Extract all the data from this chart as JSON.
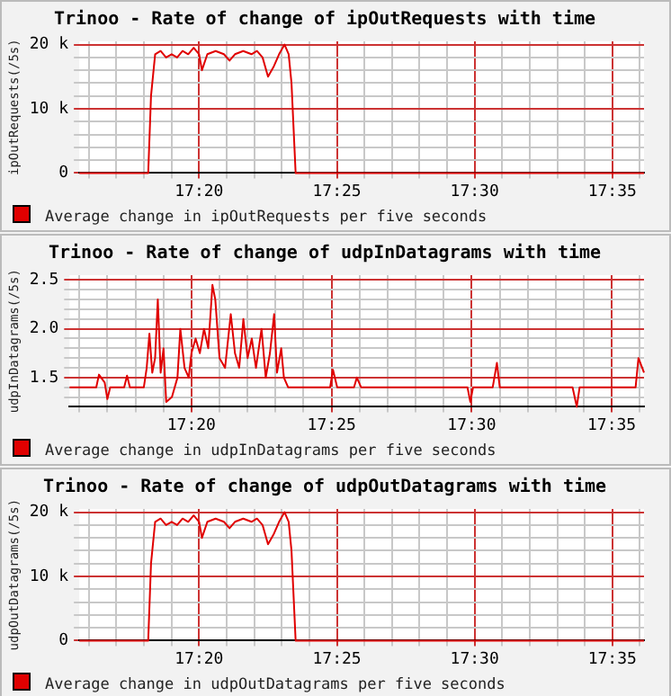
{
  "chart_data": [
    {
      "type": "line",
      "title": "Trinoo - Rate of change of ipOutRequests with time",
      "ylabel": "ipOutRequests(/5s)",
      "legend": "bottom",
      "grid": true,
      "marker": "none",
      "line_style": "solid",
      "xlim": [
        17.2608,
        17.6025
      ],
      "ylim": [
        0,
        20500
      ],
      "xticks": [
        {
          "value": 17.2667,
          "label": null
        },
        {
          "value": 17.2833,
          "label": null
        },
        {
          "value": 17.3,
          "label": null
        },
        {
          "value": 17.3167,
          "label": null
        },
        {
          "value": 17.3333,
          "label": "17:20"
        },
        {
          "value": 17.35,
          "label": null
        },
        {
          "value": 17.3667,
          "label": null
        },
        {
          "value": 17.3833,
          "label": null
        },
        {
          "value": 17.4,
          "label": null
        },
        {
          "value": 17.4167,
          "label": "17:25"
        },
        {
          "value": 17.4333,
          "label": null
        },
        {
          "value": 17.45,
          "label": null
        },
        {
          "value": 17.4667,
          "label": null
        },
        {
          "value": 17.4833,
          "label": null
        },
        {
          "value": 17.5,
          "label": "17:30"
        },
        {
          "value": 17.5167,
          "label": null
        },
        {
          "value": 17.5333,
          "label": null
        },
        {
          "value": 17.55,
          "label": null
        },
        {
          "value": 17.5667,
          "label": null
        },
        {
          "value": 17.5833,
          "label": "17:35"
        },
        {
          "value": 17.6,
          "label": null
        }
      ],
      "yticks": [
        {
          "value": 0,
          "label": "0"
        },
        {
          "value": 2000,
          "label": null
        },
        {
          "value": 4000,
          "label": null
        },
        {
          "value": 6000,
          "label": null
        },
        {
          "value": 8000,
          "label": null
        },
        {
          "value": 10000,
          "label": "10 k"
        },
        {
          "value": 12000,
          "label": null
        },
        {
          "value": 14000,
          "label": null
        },
        {
          "value": 16000,
          "label": null
        },
        {
          "value": 18000,
          "label": null
        },
        {
          "value": 20000,
          "label": "20 k"
        }
      ],
      "series": [
        {
          "name": "Average change in ipOutRequests per five seconds",
          "color": "#e00000",
          "x": [
            17.2608,
            17.3025,
            17.3042,
            17.3067,
            17.31,
            17.3133,
            17.3167,
            17.32,
            17.3233,
            17.3267,
            17.33,
            17.3333,
            17.335,
            17.3383,
            17.3433,
            17.3483,
            17.3517,
            17.355,
            17.36,
            17.365,
            17.3683,
            17.3717,
            17.375,
            17.3783,
            17.3817,
            17.385,
            17.3875,
            17.3892,
            17.3917,
            17.6025
          ],
          "values": [
            0,
            0,
            12000,
            18500,
            19000,
            18000,
            18500,
            18000,
            19000,
            18500,
            19500,
            18500,
            16000,
            18500,
            19000,
            18500,
            17500,
            18500,
            19000,
            18500,
            19000,
            18000,
            15000,
            16500,
            18500,
            20000,
            18500,
            14000,
            0,
            0
          ]
        }
      ]
    },
    {
      "type": "line",
      "title": "Trinoo - Rate of change of udpInDatagrams with time",
      "ylabel": "udpInDatagrams(/5s)",
      "legend": "bottom",
      "grid": true,
      "marker": "none",
      "line_style": "solid",
      "xlim": [
        17.2608,
        17.6025
      ],
      "ylim": [
        1.2,
        2.55
      ],
      "xticks": [
        {
          "value": 17.2667,
          "label": null
        },
        {
          "value": 17.2833,
          "label": null
        },
        {
          "value": 17.3,
          "label": null
        },
        {
          "value": 17.3167,
          "label": null
        },
        {
          "value": 17.3333,
          "label": "17:20"
        },
        {
          "value": 17.35,
          "label": null
        },
        {
          "value": 17.3667,
          "label": null
        },
        {
          "value": 17.3833,
          "label": null
        },
        {
          "value": 17.4,
          "label": null
        },
        {
          "value": 17.4167,
          "label": "17:25"
        },
        {
          "value": 17.4333,
          "label": null
        },
        {
          "value": 17.45,
          "label": null
        },
        {
          "value": 17.4667,
          "label": null
        },
        {
          "value": 17.4833,
          "label": null
        },
        {
          "value": 17.5,
          "label": "17:30"
        },
        {
          "value": 17.5167,
          "label": null
        },
        {
          "value": 17.5333,
          "label": null
        },
        {
          "value": 17.55,
          "label": null
        },
        {
          "value": 17.5667,
          "label": null
        },
        {
          "value": 17.5833,
          "label": "17:35"
        },
        {
          "value": 17.6,
          "label": null
        }
      ],
      "yticks": [
        {
          "value": 1.3,
          "label": null
        },
        {
          "value": 1.4,
          "label": null
        },
        {
          "value": 1.5,
          "label": "1.5"
        },
        {
          "value": 1.6,
          "label": null
        },
        {
          "value": 1.7,
          "label": null
        },
        {
          "value": 1.8,
          "label": null
        },
        {
          "value": 1.9,
          "label": null
        },
        {
          "value": 2,
          "label": "2.0"
        },
        {
          "value": 2.1,
          "label": null
        },
        {
          "value": 2.2,
          "label": null
        },
        {
          "value": 2.3,
          "label": null
        },
        {
          "value": 2.4,
          "label": null
        },
        {
          "value": 2.5,
          "label": "2.5"
        }
      ],
      "series": [
        {
          "name": "Average change in udpInDatagrams per five seconds",
          "color": "#e00000",
          "x": [
            17.2608,
            17.2767,
            17.2783,
            17.2817,
            17.2833,
            17.285,
            17.2933,
            17.295,
            17.2967,
            17.305,
            17.3067,
            17.3083,
            17.31,
            17.3117,
            17.3133,
            17.315,
            17.3167,
            17.3183,
            17.3217,
            17.325,
            17.3267,
            17.3292,
            17.3317,
            17.3333,
            17.3358,
            17.3383,
            17.3408,
            17.3433,
            17.3458,
            17.3475,
            17.35,
            17.3533,
            17.3567,
            17.3592,
            17.3617,
            17.3642,
            17.3667,
            17.3692,
            17.3717,
            17.375,
            17.3775,
            17.38,
            17.3825,
            17.3842,
            17.3867,
            17.3883,
            17.3908,
            17.4158,
            17.4175,
            17.42,
            17.43,
            17.4317,
            17.4342,
            17.4975,
            17.4992,
            17.5008,
            17.5125,
            17.515,
            17.5167,
            17.56,
            17.5625,
            17.5642,
            17.5975,
            17.5992,
            17.6025
          ],
          "values": [
            1.4,
            1.4,
            1.53,
            1.45,
            1.28,
            1.4,
            1.4,
            1.52,
            1.4,
            1.4,
            1.6,
            1.95,
            1.55,
            1.7,
            2.3,
            1.55,
            1.8,
            1.25,
            1.3,
            1.5,
            2.0,
            1.6,
            1.5,
            1.75,
            1.9,
            1.75,
            2.0,
            1.8,
            2.45,
            2.3,
            1.7,
            1.6,
            2.15,
            1.75,
            1.6,
            2.1,
            1.7,
            1.9,
            1.6,
            2.0,
            1.5,
            1.75,
            2.15,
            1.55,
            1.8,
            1.5,
            1.4,
            1.4,
            1.58,
            1.4,
            1.4,
            1.5,
            1.4,
            1.4,
            1.25,
            1.4,
            1.4,
            1.65,
            1.4,
            1.4,
            1.2,
            1.4,
            1.4,
            1.7,
            1.55
          ]
        }
      ]
    },
    {
      "type": "line",
      "title": "Trinoo - Rate of change of udpOutDatagrams with time",
      "ylabel": "udpOutDatagrams(/5s)",
      "legend": "bottom",
      "grid": true,
      "marker": "none",
      "line_style": "solid",
      "xlim": [
        17.2608,
        17.6025
      ],
      "ylim": [
        0,
        20500
      ],
      "xticks": [
        {
          "value": 17.2667,
          "label": null
        },
        {
          "value": 17.2833,
          "label": null
        },
        {
          "value": 17.3,
          "label": null
        },
        {
          "value": 17.3167,
          "label": null
        },
        {
          "value": 17.3333,
          "label": "17:20"
        },
        {
          "value": 17.35,
          "label": null
        },
        {
          "value": 17.3667,
          "label": null
        },
        {
          "value": 17.3833,
          "label": null
        },
        {
          "value": 17.4,
          "label": null
        },
        {
          "value": 17.4167,
          "label": "17:25"
        },
        {
          "value": 17.4333,
          "label": null
        },
        {
          "value": 17.45,
          "label": null
        },
        {
          "value": 17.4667,
          "label": null
        },
        {
          "value": 17.4833,
          "label": null
        },
        {
          "value": 17.5,
          "label": "17:30"
        },
        {
          "value": 17.5167,
          "label": null
        },
        {
          "value": 17.5333,
          "label": null
        },
        {
          "value": 17.55,
          "label": null
        },
        {
          "value": 17.5667,
          "label": null
        },
        {
          "value": 17.5833,
          "label": "17:35"
        },
        {
          "value": 17.6,
          "label": null
        }
      ],
      "yticks": [
        {
          "value": 0,
          "label": "0"
        },
        {
          "value": 2000,
          "label": null
        },
        {
          "value": 4000,
          "label": null
        },
        {
          "value": 6000,
          "label": null
        },
        {
          "value": 8000,
          "label": null
        },
        {
          "value": 10000,
          "label": "10 k"
        },
        {
          "value": 12000,
          "label": null
        },
        {
          "value": 14000,
          "label": null
        },
        {
          "value": 16000,
          "label": null
        },
        {
          "value": 18000,
          "label": null
        },
        {
          "value": 20000,
          "label": "20 k"
        }
      ],
      "series": [
        {
          "name": "Average change in udpOutDatagrams per five seconds",
          "color": "#e00000",
          "x": [
            17.2608,
            17.3025,
            17.3042,
            17.3067,
            17.31,
            17.3133,
            17.3167,
            17.32,
            17.3233,
            17.3267,
            17.33,
            17.3333,
            17.335,
            17.3383,
            17.3433,
            17.3483,
            17.3517,
            17.355,
            17.36,
            17.365,
            17.3683,
            17.3717,
            17.375,
            17.3783,
            17.3817,
            17.385,
            17.3875,
            17.3892,
            17.3917,
            17.6025
          ],
          "values": [
            0,
            0,
            12000,
            18500,
            19000,
            18000,
            18500,
            18000,
            19000,
            18500,
            19500,
            18500,
            16000,
            18500,
            19000,
            18500,
            17500,
            18500,
            19000,
            18500,
            19000,
            18000,
            15000,
            16500,
            18500,
            20000,
            18500,
            14000,
            0,
            0
          ]
        }
      ]
    }
  ]
}
